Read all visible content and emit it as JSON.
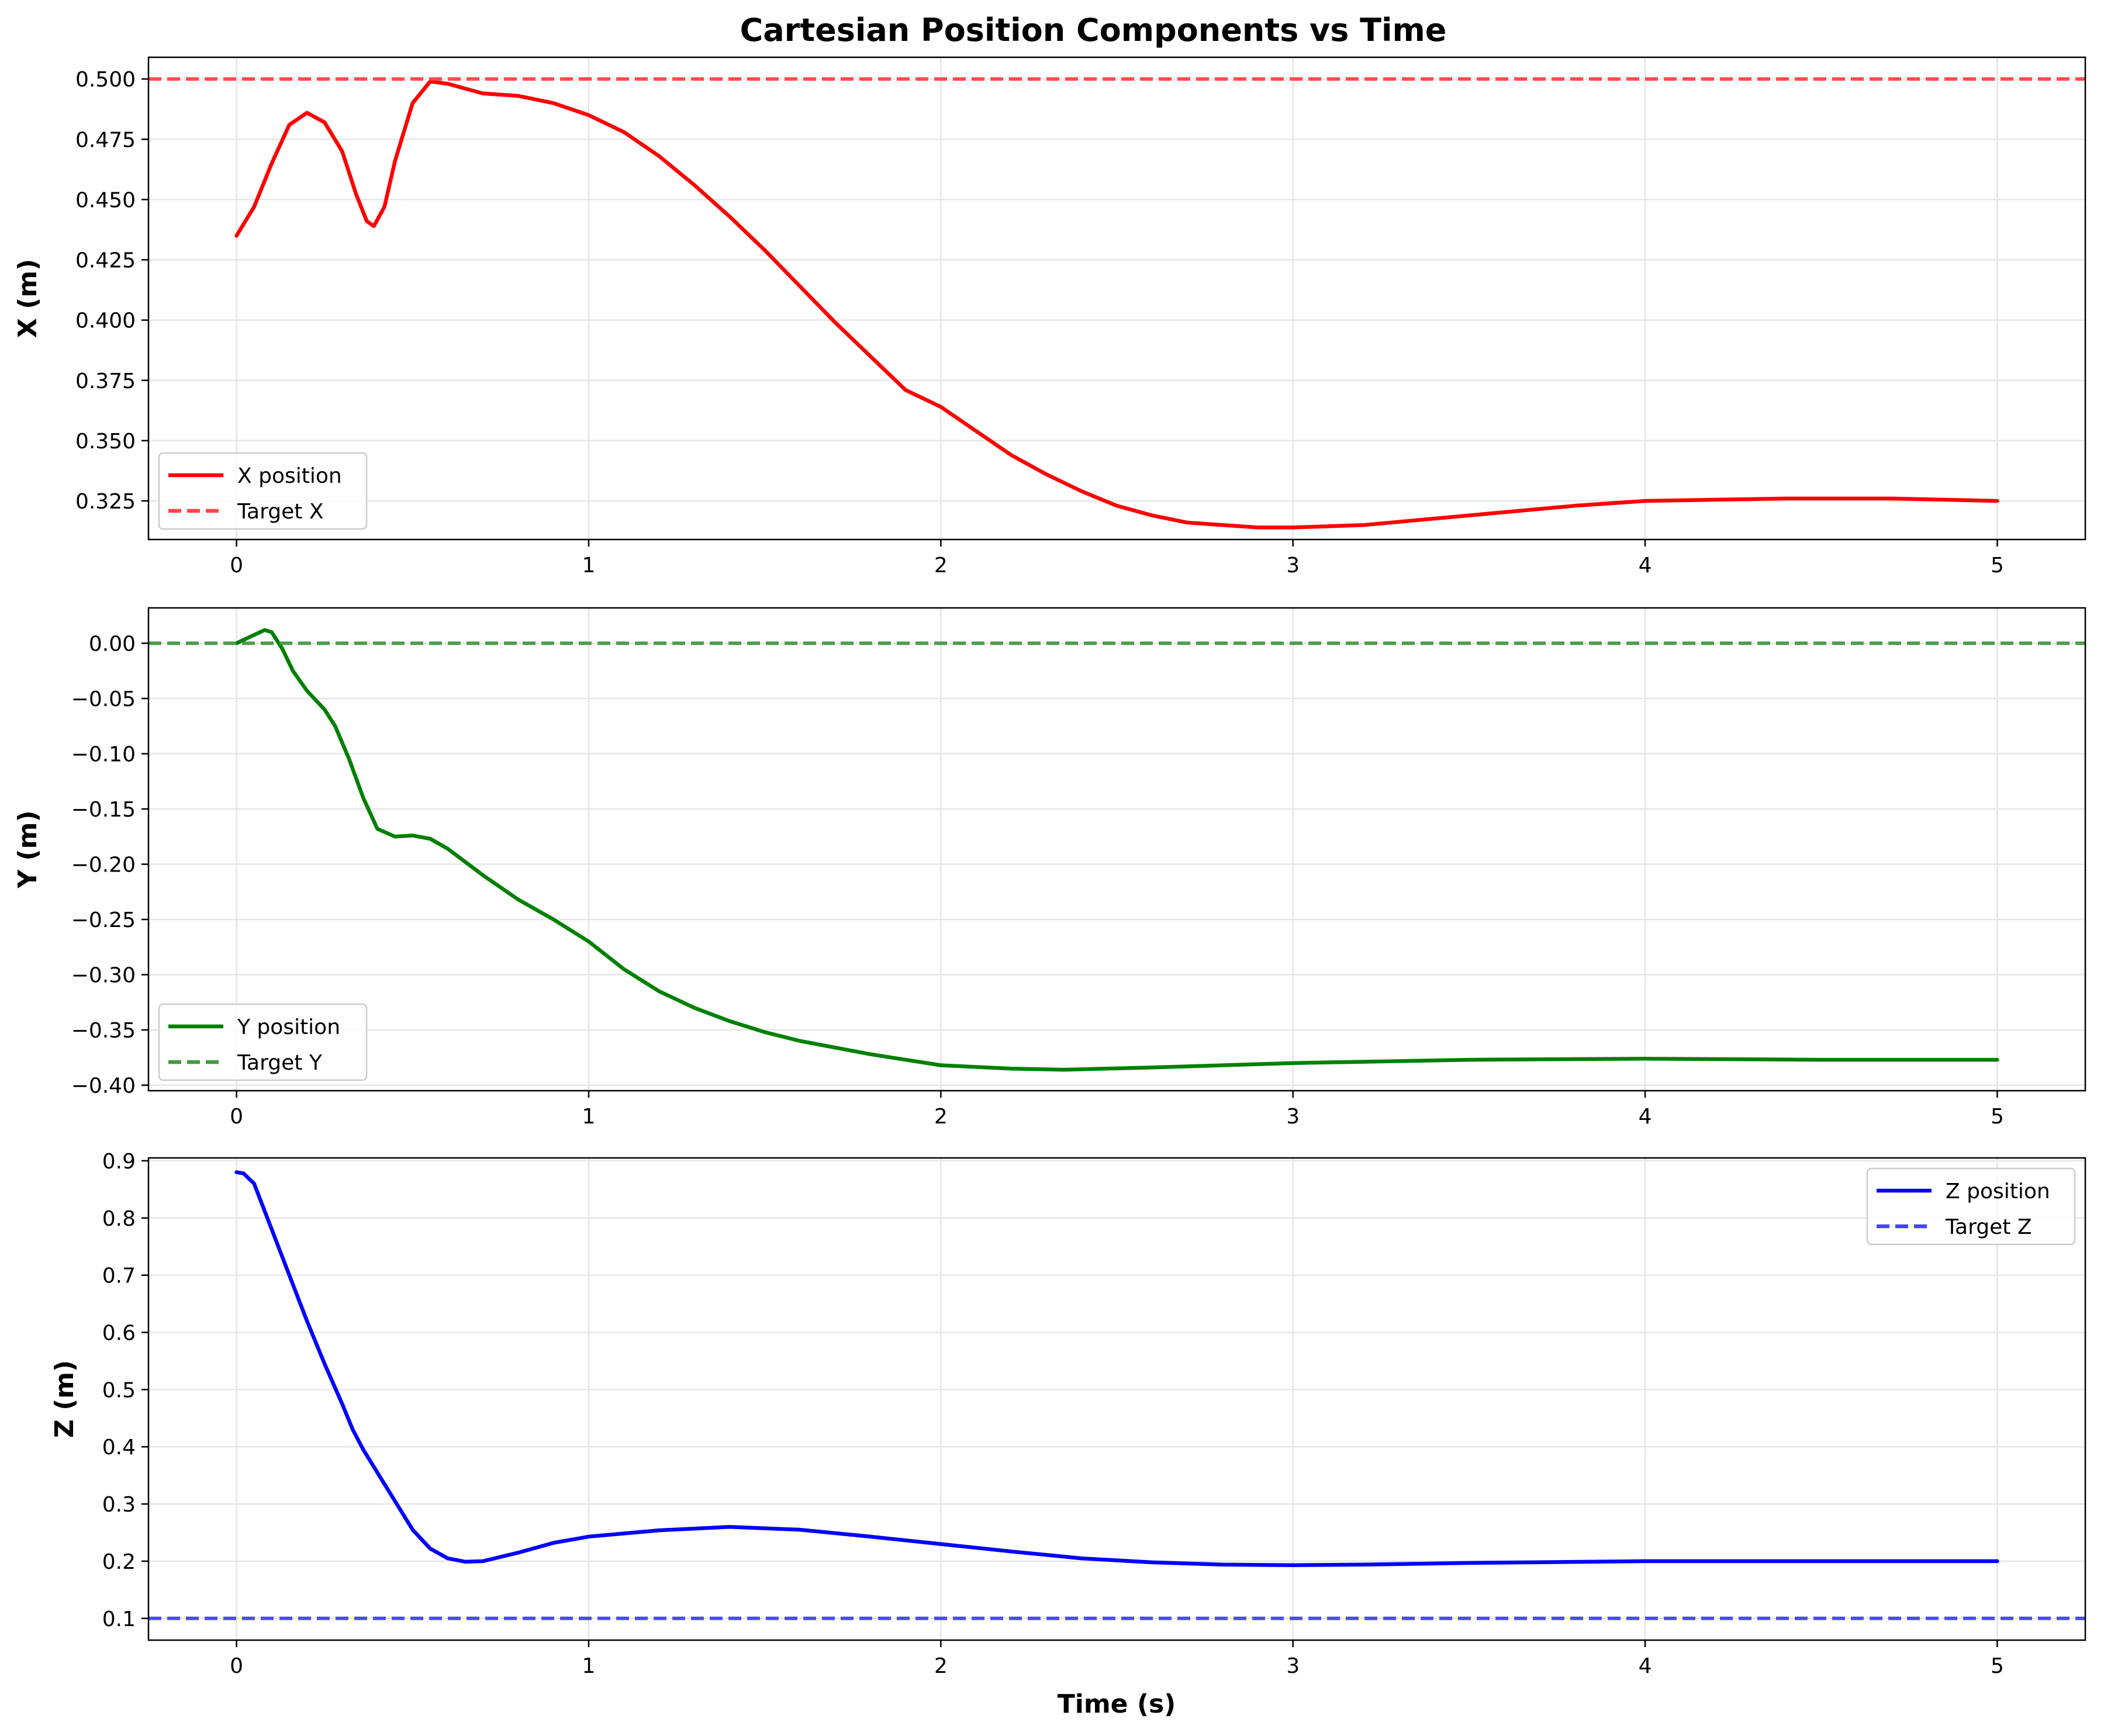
{
  "chart_data": [
    {
      "type": "line",
      "title": "Cartesian Position Components vs Time",
      "xlabel": "",
      "ylabel": "X (m)",
      "xlim": [
        -0.25,
        5.25
      ],
      "ylim": [
        0.309,
        0.509
      ],
      "xticks": [
        "0",
        "1",
        "2",
        "3",
        "4",
        "5"
      ],
      "yticks": [
        "0.325",
        "0.350",
        "0.375",
        "0.400",
        "0.425",
        "0.450",
        "0.475",
        "0.500"
      ],
      "grid": true,
      "legend_position": "lower-left",
      "series": [
        {
          "name": "X position",
          "color": "#ff0000",
          "style": "solid",
          "points": [
            [
              0,
              0.435
            ],
            [
              0.05,
              0.447
            ],
            [
              0.1,
              0.465
            ],
            [
              0.15,
              0.481
            ],
            [
              0.2,
              0.486
            ],
            [
              0.25,
              0.482
            ],
            [
              0.3,
              0.47
            ],
            [
              0.34,
              0.452
            ],
            [
              0.37,
              0.441
            ],
            [
              0.39,
              0.439
            ],
            [
              0.42,
              0.447
            ],
            [
              0.45,
              0.466
            ],
            [
              0.5,
              0.49
            ],
            [
              0.55,
              0.499
            ],
            [
              0.6,
              0.498
            ],
            [
              0.7,
              0.494
            ],
            [
              0.8,
              0.493
            ],
            [
              0.9,
              0.49
            ],
            [
              1.0,
              0.485
            ],
            [
              1.1,
              0.478
            ],
            [
              1.2,
              0.468
            ],
            [
              1.3,
              0.456
            ],
            [
              1.4,
              0.443
            ],
            [
              1.5,
              0.429
            ],
            [
              1.6,
              0.414
            ],
            [
              1.7,
              0.399
            ],
            [
              1.8,
              0.385
            ],
            [
              1.9,
              0.371
            ],
            [
              2.0,
              0.364
            ],
            [
              2.1,
              0.354
            ],
            [
              2.2,
              0.344
            ],
            [
              2.3,
              0.336
            ],
            [
              2.4,
              0.329
            ],
            [
              2.5,
              0.323
            ],
            [
              2.6,
              0.319
            ],
            [
              2.7,
              0.316
            ],
            [
              2.8,
              0.315
            ],
            [
              2.9,
              0.314
            ],
            [
              3.0,
              0.314
            ],
            [
              3.2,
              0.315
            ],
            [
              3.5,
              0.319
            ],
            [
              3.8,
              0.323
            ],
            [
              4.0,
              0.325
            ],
            [
              4.4,
              0.326
            ],
            [
              4.7,
              0.326
            ],
            [
              5.0,
              0.325
            ]
          ]
        },
        {
          "name": "Target X",
          "color": "#ff4444",
          "style": "dashed",
          "constant": 0.5
        }
      ]
    },
    {
      "type": "line",
      "xlabel": "",
      "ylabel": "Y (m)",
      "xlim": [
        -0.25,
        5.25
      ],
      "ylim": [
        -0.405,
        0.032
      ],
      "xticks": [
        "0",
        "1",
        "2",
        "3",
        "4",
        "5"
      ],
      "yticks": [
        "−0.40",
        "−0.35",
        "−0.30",
        "−0.25",
        "−0.20",
        "−0.15",
        "−0.10",
        "−0.05",
        "0.00"
      ],
      "grid": true,
      "legend_position": "lower-left",
      "series": [
        {
          "name": "Y position",
          "color": "#008000",
          "style": "solid",
          "points": [
            [
              0,
              0.0
            ],
            [
              0.04,
              0.006
            ],
            [
              0.08,
              0.012
            ],
            [
              0.1,
              0.01
            ],
            [
              0.13,
              -0.005
            ],
            [
              0.16,
              -0.025
            ],
            [
              0.2,
              -0.043
            ],
            [
              0.25,
              -0.06
            ],
            [
              0.28,
              -0.075
            ],
            [
              0.32,
              -0.105
            ],
            [
              0.36,
              -0.14
            ],
            [
              0.4,
              -0.168
            ],
            [
              0.45,
              -0.175
            ],
            [
              0.5,
              -0.174
            ],
            [
              0.55,
              -0.177
            ],
            [
              0.6,
              -0.186
            ],
            [
              0.7,
              -0.21
            ],
            [
              0.8,
              -0.232
            ],
            [
              0.9,
              -0.25
            ],
            [
              1.0,
              -0.27
            ],
            [
              1.1,
              -0.295
            ],
            [
              1.2,
              -0.315
            ],
            [
              1.3,
              -0.33
            ],
            [
              1.4,
              -0.342
            ],
            [
              1.5,
              -0.352
            ],
            [
              1.6,
              -0.36
            ],
            [
              1.8,
              -0.372
            ],
            [
              2.0,
              -0.382
            ],
            [
              2.2,
              -0.385
            ],
            [
              2.35,
              -0.386
            ],
            [
              2.6,
              -0.384
            ],
            [
              3.0,
              -0.38
            ],
            [
              3.5,
              -0.377
            ],
            [
              4.0,
              -0.376
            ],
            [
              4.5,
              -0.377
            ],
            [
              5.0,
              -0.377
            ]
          ]
        },
        {
          "name": "Target Y",
          "color": "#449944",
          "style": "dashed",
          "constant": 0.0
        }
      ]
    },
    {
      "type": "line",
      "xlabel": "Time (s)",
      "ylabel": "Z (m)",
      "xlim": [
        -0.25,
        5.25
      ],
      "ylim": [
        0.062,
        0.905
      ],
      "xticks": [
        "0",
        "1",
        "2",
        "3",
        "4",
        "5"
      ],
      "yticks": [
        "0.1",
        "0.2",
        "0.3",
        "0.4",
        "0.5",
        "0.6",
        "0.7",
        "0.8",
        "0.9"
      ],
      "grid": true,
      "legend_position": "upper-right",
      "series": [
        {
          "name": "Z position",
          "color": "#0000ff",
          "style": "solid",
          "points": [
            [
              0,
              0.88
            ],
            [
              0.02,
              0.878
            ],
            [
              0.05,
              0.86
            ],
            [
              0.1,
              0.78
            ],
            [
              0.15,
              0.7
            ],
            [
              0.2,
              0.62
            ],
            [
              0.25,
              0.545
            ],
            [
              0.3,
              0.475
            ],
            [
              0.33,
              0.43
            ],
            [
              0.36,
              0.395
            ],
            [
              0.4,
              0.355
            ],
            [
              0.45,
              0.305
            ],
            [
              0.5,
              0.255
            ],
            [
              0.55,
              0.222
            ],
            [
              0.6,
              0.205
            ],
            [
              0.65,
              0.199
            ],
            [
              0.7,
              0.2
            ],
            [
              0.8,
              0.215
            ],
            [
              0.9,
              0.232
            ],
            [
              1.0,
              0.243
            ],
            [
              1.2,
              0.254
            ],
            [
              1.4,
              0.26
            ],
            [
              1.6,
              0.255
            ],
            [
              1.8,
              0.243
            ],
            [
              2.0,
              0.23
            ],
            [
              2.2,
              0.217
            ],
            [
              2.4,
              0.205
            ],
            [
              2.6,
              0.198
            ],
            [
              2.8,
              0.194
            ],
            [
              3.0,
              0.193
            ],
            [
              3.2,
              0.194
            ],
            [
              3.5,
              0.197
            ],
            [
              4.0,
              0.2
            ],
            [
              4.5,
              0.2
            ],
            [
              5.0,
              0.2
            ]
          ]
        },
        {
          "name": "Target Z",
          "color": "#4444ff",
          "style": "dashed",
          "constant": 0.1
        }
      ]
    }
  ]
}
